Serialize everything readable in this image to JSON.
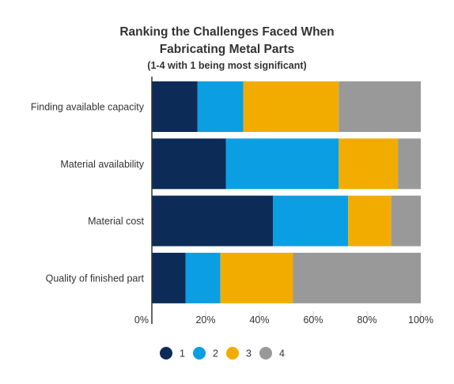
{
  "chart_data": {
    "type": "bar",
    "orientation": "horizontal",
    "stacked": true,
    "title_line1": "Ranking the Challenges Faced When",
    "title_line2": "Fabricating Metal Parts",
    "subtitle": "(1-4 with 1 being most significant)",
    "categories": [
      "Finding available capacity",
      "Material availability",
      "Material cost",
      "Quality of finished part"
    ],
    "xlim": [
      0,
      100
    ],
    "x_ticks": [
      "0%",
      "20%",
      "40%",
      "60%",
      "80%",
      "100%"
    ],
    "x_tick_values": [
      0,
      20,
      40,
      60,
      80,
      100
    ],
    "grid": false,
    "legend_position": "bottom",
    "colors": {
      "1": "#0d2b57",
      "2": "#0c9ee2",
      "3": "#f2ac00",
      "4": "#999999"
    },
    "series": [
      {
        "name": "1",
        "values": [
          17,
          27.5,
          45,
          12.5
        ]
      },
      {
        "name": "2",
        "values": [
          17,
          42,
          28,
          13
        ]
      },
      {
        "name": "3",
        "values": [
          35.5,
          22,
          16,
          27
        ]
      },
      {
        "name": "4",
        "values": [
          30.5,
          8.5,
          11,
          47.5
        ]
      }
    ]
  }
}
